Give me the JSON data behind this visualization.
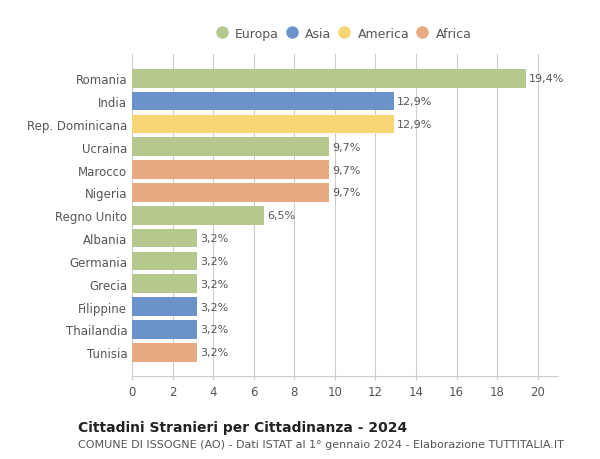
{
  "categories": [
    "Romania",
    "India",
    "Rep. Dominicana",
    "Ucraina",
    "Marocco",
    "Nigeria",
    "Regno Unito",
    "Albania",
    "Germania",
    "Grecia",
    "Filippine",
    "Thailandia",
    "Tunisia"
  ],
  "values": [
    19.4,
    12.9,
    12.9,
    9.7,
    9.7,
    9.7,
    6.5,
    3.2,
    3.2,
    3.2,
    3.2,
    3.2,
    3.2
  ],
  "labels": [
    "19,4%",
    "12,9%",
    "12,9%",
    "9,7%",
    "9,7%",
    "9,7%",
    "6,5%",
    "3,2%",
    "3,2%",
    "3,2%",
    "3,2%",
    "3,2%",
    "3,2%"
  ],
  "colors": [
    "#b5c98e",
    "#6b93c9",
    "#f5d672",
    "#b5c98e",
    "#e8aa80",
    "#e8aa80",
    "#b5c98e",
    "#b5c98e",
    "#b5c98e",
    "#b5c98e",
    "#6b93c9",
    "#6b93c9",
    "#e8aa80"
  ],
  "legend_labels": [
    "Europa",
    "Asia",
    "America",
    "Africa"
  ],
  "legend_colors": [
    "#b5c98e",
    "#6b93c9",
    "#f5d672",
    "#e8aa80"
  ],
  "title": "Cittadini Stranieri per Cittadinanza - 2024",
  "subtitle": "COMUNE DI ISSOGNE (AO) - Dati ISTAT al 1° gennaio 2024 - Elaborazione TUTTITALIA.IT",
  "xlim": [
    0,
    21
  ],
  "xticks": [
    0,
    2,
    4,
    6,
    8,
    10,
    12,
    14,
    16,
    18,
    20
  ],
  "background_color": "#ffffff",
  "grid_color": "#cccccc",
  "bar_height": 0.82,
  "title_fontsize": 10,
  "subtitle_fontsize": 8,
  "label_fontsize": 8,
  "tick_fontsize": 8.5,
  "legend_fontsize": 9
}
